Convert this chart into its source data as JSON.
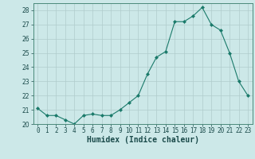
{
  "x": [
    0,
    1,
    2,
    3,
    4,
    5,
    6,
    7,
    8,
    9,
    10,
    11,
    12,
    13,
    14,
    15,
    16,
    17,
    18,
    19,
    20,
    21,
    22,
    23
  ],
  "y": [
    21.1,
    20.6,
    20.6,
    20.3,
    20.0,
    20.6,
    20.7,
    20.6,
    20.6,
    21.0,
    21.5,
    22.0,
    23.5,
    24.7,
    25.1,
    27.2,
    27.2,
    27.6,
    28.2,
    27.0,
    26.6,
    25.0,
    23.0,
    22.0
  ],
  "line_color": "#1a7a6a",
  "marker_color": "#1a7a6a",
  "bg_color": "#cce8e8",
  "grid_color": "#b0cccc",
  "xlabel": "Humidex (Indice chaleur)",
  "ylim": [
    20,
    28.5
  ],
  "xlim": [
    -0.5,
    23.5
  ],
  "yticks": [
    20,
    21,
    22,
    23,
    24,
    25,
    26,
    27,
    28
  ],
  "xtick_labels": [
    "0",
    "1",
    "2",
    "3",
    "4",
    "5",
    "6",
    "7",
    "8",
    "9",
    "10",
    "11",
    "12",
    "13",
    "14",
    "15",
    "16",
    "17",
    "18",
    "19",
    "20",
    "21",
    "22",
    "23"
  ],
  "tick_label_fontsize": 5.5,
  "xlabel_fontsize": 7.0,
  "spine_color": "#4a8a7a"
}
